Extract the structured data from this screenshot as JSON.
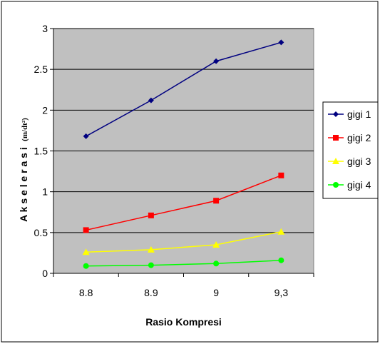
{
  "chart_data": {
    "type": "line",
    "title": "",
    "xlabel": "Rasio Kompresi",
    "ylabel": "A k s e l e r a s i",
    "ylabel_unit": "(m/dt²)",
    "categories": [
      "8.8",
      "8.9",
      "9",
      "9,3"
    ],
    "ylim": [
      0,
      3
    ],
    "y_ticks": [
      "0",
      "0.5",
      "1",
      "1.5",
      "2",
      "2.5",
      "3"
    ],
    "grid": "horizontal",
    "plot_background": "#c0c0c0",
    "legend_position": "right",
    "series": [
      {
        "name": "gigi 1",
        "color": "#000080",
        "marker": "diamond",
        "values": [
          1.68,
          2.12,
          2.6,
          2.83
        ]
      },
      {
        "name": "gigi 2",
        "color": "#ff0000",
        "marker": "square",
        "values": [
          0.53,
          0.71,
          0.89,
          1.2
        ]
      },
      {
        "name": "gigi 3",
        "color": "#ffff00",
        "marker": "triangle",
        "values": [
          0.26,
          0.29,
          0.35,
          0.51
        ]
      },
      {
        "name": "gigi 4",
        "color": "#00ff00",
        "marker": "circle",
        "values": [
          0.09,
          0.1,
          0.12,
          0.16
        ]
      }
    ]
  }
}
